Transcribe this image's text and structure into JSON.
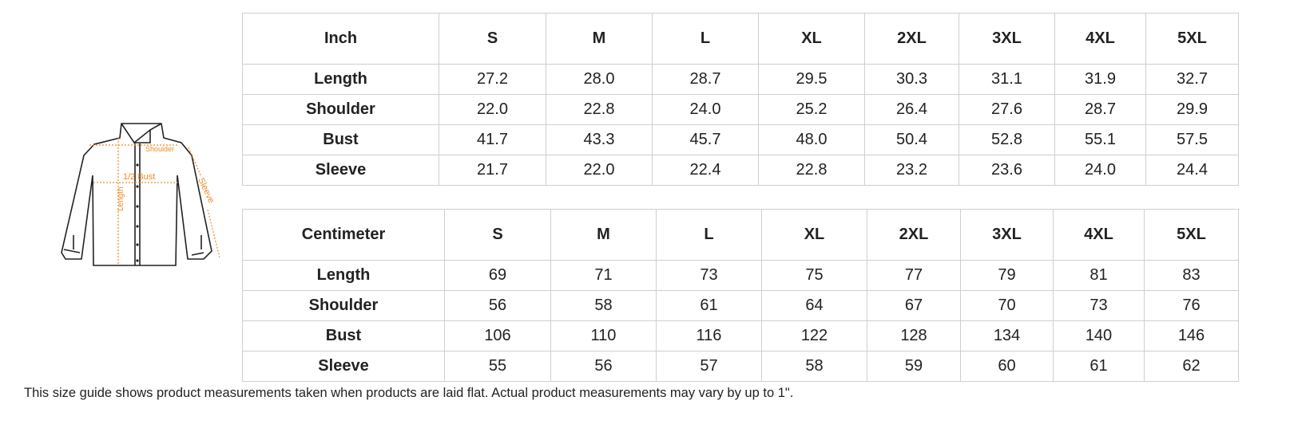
{
  "diagram": {
    "labels": {
      "shoulder": "Shoulder",
      "bust": "1/2 Bust",
      "length": "Length",
      "sleeve": "Sleeve"
    },
    "accent_color": "#f08a24"
  },
  "inch_table": {
    "headers": [
      "Inch",
      "S",
      "M",
      "L",
      "XL",
      "2XL",
      "3XL",
      "4XL",
      "5XL"
    ],
    "rows": [
      {
        "label": "Length",
        "values": [
          "27.2",
          "28.0",
          "28.7",
          "29.5",
          "30.3",
          "31.1",
          "31.9",
          "32.7"
        ]
      },
      {
        "label": "Shoulder",
        "values": [
          "22.0",
          "22.8",
          "24.0",
          "25.2",
          "26.4",
          "27.6",
          "28.7",
          "29.9"
        ]
      },
      {
        "label": "Bust",
        "values": [
          "41.7",
          "43.3",
          "45.7",
          "48.0",
          "50.4",
          "52.8",
          "55.1",
          "57.5"
        ]
      },
      {
        "label": "Sleeve",
        "values": [
          "21.7",
          "22.0",
          "22.4",
          "22.8",
          "23.2",
          "23.6",
          "24.0",
          "24.4"
        ]
      }
    ]
  },
  "cm_table": {
    "headers": [
      "Centimeter",
      "S",
      "M",
      "L",
      "XL",
      "2XL",
      "3XL",
      "4XL",
      "5XL"
    ],
    "rows": [
      {
        "label": "Length",
        "values": [
          "69",
          "71",
          "73",
          "75",
          "77",
          "79",
          "81",
          "83"
        ]
      },
      {
        "label": "Shoulder",
        "values": [
          "56",
          "58",
          "61",
          "64",
          "67",
          "70",
          "73",
          "76"
        ]
      },
      {
        "label": "Bust",
        "values": [
          "106",
          "110",
          "116",
          "122",
          "128",
          "134",
          "140",
          "146"
        ]
      },
      {
        "label": "Sleeve",
        "values": [
          "55",
          "56",
          "57",
          "58",
          "59",
          "60",
          "61",
          "62"
        ]
      }
    ]
  },
  "footnote": "This size guide shows product measurements taken when products are laid flat. Actual product measurements may vary by up to 1\"."
}
